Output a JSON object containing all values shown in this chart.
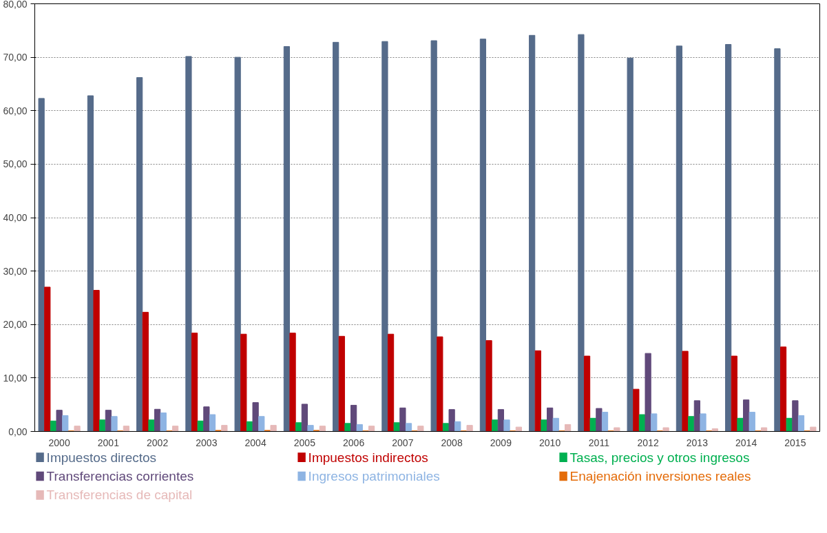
{
  "chart_data": {
    "type": "bar",
    "categories": [
      "2000",
      "2001",
      "2002",
      "2003",
      "2004",
      "2005",
      "2006",
      "2007",
      "2008",
      "2009",
      "2010",
      "2011",
      "2012",
      "2013",
      "2014",
      "2015"
    ],
    "series": [
      {
        "name": "Impuestos directos",
        "color": "#556b8a",
        "values": [
          62.3,
          62.8,
          66.2,
          70.15,
          70.0,
          72.0,
          72.8,
          72.95,
          73.1,
          73.4,
          74.1,
          74.25,
          69.85,
          72.1,
          72.4,
          71.6
        ]
      },
      {
        "name": "Impuestos indirectos",
        "color": "#c00000",
        "values": [
          27.0,
          26.4,
          22.3,
          18.4,
          18.2,
          18.4,
          17.8,
          18.2,
          17.7,
          17.0,
          15.1,
          14.1,
          7.9,
          15.0,
          14.1,
          15.8
        ]
      },
      {
        "name": "Tasas, precios y otros ingresos",
        "color": "#00b050",
        "values": [
          1.96,
          2.15,
          2.15,
          1.96,
          1.83,
          1.64,
          1.5,
          1.64,
          1.5,
          2.15,
          2.15,
          2.47,
          3.15,
          2.8,
          2.47,
          2.47
        ]
      },
      {
        "name": "Transferencias corrientes",
        "color": "#60497a",
        "values": [
          3.97,
          3.97,
          4.15,
          4.6,
          5.4,
          5.1,
          4.9,
          4.4,
          4.1,
          4.1,
          4.4,
          4.3,
          14.6,
          5.75,
          5.9,
          5.75
        ]
      },
      {
        "name": "Ingresos patrimoniales",
        "color": "#8eb4e3",
        "values": [
          2.97,
          2.8,
          3.47,
          3.15,
          2.8,
          1.14,
          1.3,
          1.5,
          1.83,
          2.15,
          2.47,
          3.6,
          3.3,
          3.3,
          3.6,
          2.97
        ]
      },
      {
        "name": "Enajenación inversiones reales",
        "color": "#e46c0a",
        "values": [
          0.1,
          0.1,
          0.1,
          0.2,
          0.2,
          0.2,
          0.1,
          0.1,
          0.1,
          0.1,
          0.1,
          0.1,
          0.1,
          0.1,
          0.1,
          0.1
        ]
      },
      {
        "name": "Transferencias de capital",
        "color": "#e6b9b8",
        "values": [
          1.0,
          1.0,
          1.0,
          1.14,
          1.14,
          1.0,
          1.0,
          1.0,
          1.14,
          0.82,
          1.3,
          0.7,
          0.7,
          0.5,
          0.7,
          0.82
        ]
      }
    ],
    "ylim": [
      0,
      80
    ],
    "yticks": [
      {
        "value": 0,
        "label": "0,00"
      },
      {
        "value": 10,
        "label": "10,00"
      },
      {
        "value": 20,
        "label": "20,00"
      },
      {
        "value": 30,
        "label": "30,00"
      },
      {
        "value": 40,
        "label": "40,00"
      },
      {
        "value": 50,
        "label": "50,00"
      },
      {
        "value": 60,
        "label": "60,00"
      },
      {
        "value": 70,
        "label": "70,00"
      },
      {
        "value": 80,
        "label": "80,00"
      }
    ],
    "grid": "y",
    "legend": "bottom"
  }
}
